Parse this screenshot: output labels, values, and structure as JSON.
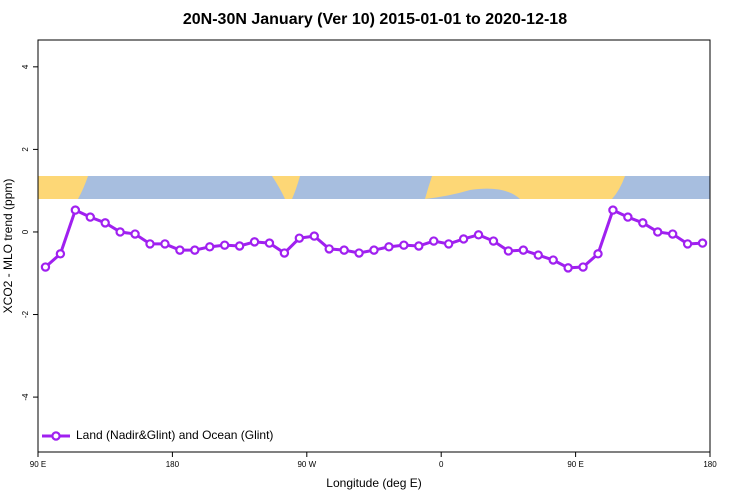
{
  "chart_data": {
    "type": "line",
    "title": "20N-30N January (Ver 10)   2015-01-01 to 2020-12-18",
    "x_label": "Longitude (deg E)",
    "y_label": "XCO2 - MLO trend (ppm)",
    "xlim": [
      90,
      540
    ],
    "ylim": [
      -5.33,
      4.65
    ],
    "xticks": [
      {
        "value": 90,
        "label": "90 E"
      },
      {
        "value": 180,
        "label": "180"
      },
      {
        "value": 270,
        "label": "90 W"
      },
      {
        "value": 360,
        "label": "0"
      },
      {
        "value": 450,
        "label": "90 E"
      },
      {
        "value": 540,
        "label": "180"
      }
    ],
    "yticks": [
      -4,
      -2,
      0,
      2,
      4
    ],
    "legend": "bottom-left",
    "x": [
      95,
      105,
      115,
      125,
      135,
      145,
      155,
      165,
      175,
      185,
      195,
      205,
      215,
      225,
      235,
      245,
      255,
      265,
      275,
      285,
      295,
      305,
      315,
      325,
      335,
      345,
      355,
      365,
      375,
      385,
      395,
      405,
      415,
      425,
      435,
      445,
      455,
      465,
      475,
      485,
      495,
      505,
      515,
      525,
      535
    ],
    "series": [
      {
        "name": "Land (Nadir&Glint) and Ocean (Glint)",
        "color": "#a020f0",
        "values": [
          -0.85,
          -0.53,
          0.53,
          0.36,
          0.22,
          0.0,
          -0.05,
          -0.29,
          -0.29,
          -0.44,
          -0.44,
          -0.36,
          -0.32,
          -0.34,
          -0.24,
          -0.27,
          -0.51,
          -0.15,
          -0.1,
          -0.41,
          -0.44,
          -0.51,
          -0.44,
          -0.36,
          -0.32,
          -0.34,
          -0.22,
          -0.29,
          -0.17,
          -0.07,
          -0.22,
          -0.46,
          -0.44,
          -0.56,
          -0.68,
          -0.87,
          -0.85,
          -0.53,
          0.53,
          0.36,
          0.22,
          0.0,
          -0.05,
          -0.29,
          -0.27
        ]
      }
    ]
  }
}
